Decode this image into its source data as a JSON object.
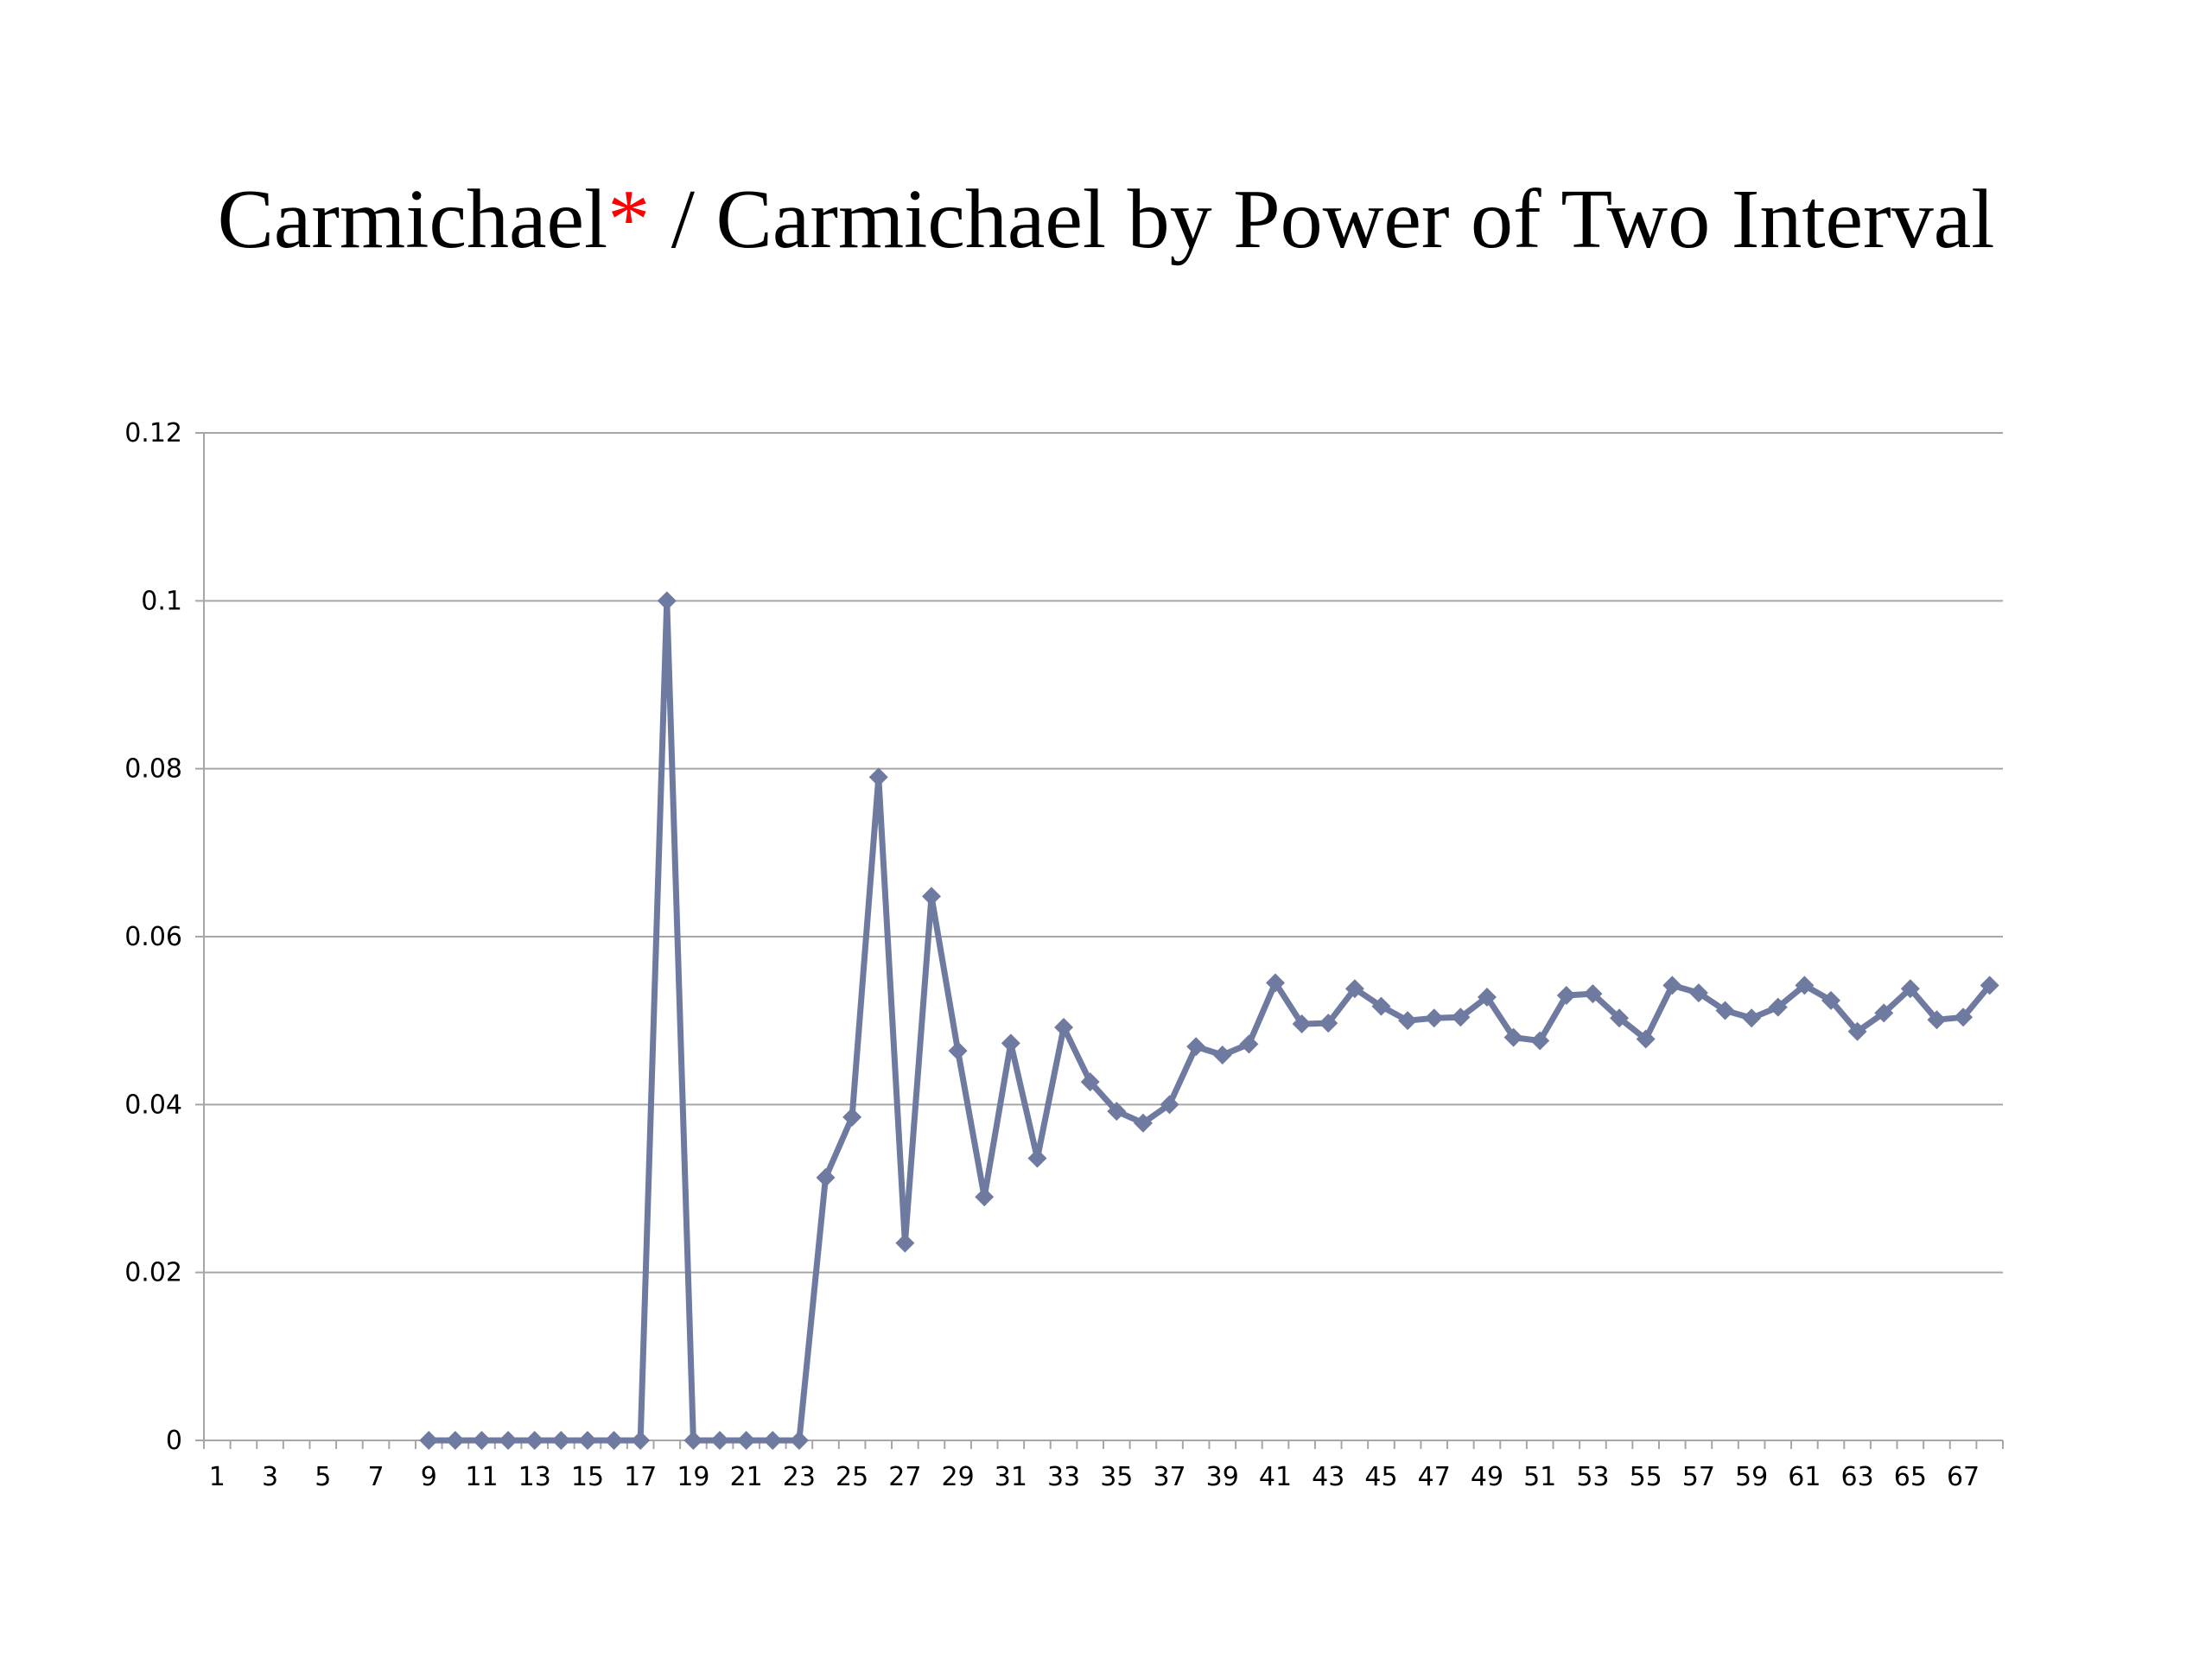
{
  "chart_data": {
    "type": "line",
    "title": {
      "prefix": "Carmichael",
      "mark": "*",
      "suffix": " / Carmichael by Power of Two Interval"
    },
    "xlabel": "",
    "ylabel": "",
    "x": [
      1,
      2,
      3,
      4,
      5,
      6,
      7,
      8,
      9,
      10,
      11,
      12,
      13,
      14,
      15,
      16,
      17,
      18,
      19,
      20,
      21,
      22,
      23,
      24,
      25,
      26,
      27,
      28,
      29,
      30,
      31,
      32,
      33,
      34,
      35,
      36,
      37,
      38,
      39,
      40,
      41,
      42,
      43,
      44,
      45,
      46,
      47,
      48,
      49,
      50,
      51,
      52,
      53,
      54,
      55,
      56,
      57,
      58,
      59,
      60,
      61,
      62,
      63,
      64,
      65,
      66,
      67,
      68
    ],
    "x_tick_labels": [
      "1",
      "3",
      "5",
      "7",
      "9",
      "11",
      "13",
      "15",
      "17",
      "19",
      "21",
      "23",
      "25",
      "27",
      "29",
      "31",
      "33",
      "35",
      "37",
      "39",
      "41",
      "43",
      "45",
      "47",
      "49",
      "51",
      "53",
      "55",
      "57",
      "59",
      "61",
      "63",
      "65",
      "67"
    ],
    "ylim": [
      0,
      0.12
    ],
    "y_ticks": [
      0,
      0.02,
      0.04,
      0.06,
      0.08,
      0.1,
      0.12
    ],
    "y_tick_labels": [
      "0",
      "0.02",
      "0.04",
      "0.06",
      "0.08",
      "0.1",
      "0.12"
    ],
    "grid": true,
    "legend": "none",
    "series": [
      {
        "color": "#6f7aa0",
        "marker": "diamond",
        "points": [
          [
            9,
            0
          ],
          [
            10,
            0
          ],
          [
            11,
            0
          ],
          [
            12,
            0
          ],
          [
            13,
            0
          ],
          [
            14,
            0
          ],
          [
            15,
            0
          ],
          [
            16,
            0
          ],
          [
            17,
            0
          ],
          [
            18,
            0.1
          ],
          [
            19,
            0
          ],
          [
            20,
            0
          ],
          [
            21,
            0
          ],
          [
            22,
            0
          ],
          [
            23,
            0
          ],
          [
            24,
            0.0313
          ],
          [
            25,
            0.0385
          ],
          [
            26,
            0.079
          ],
          [
            27,
            0.0235
          ],
          [
            28,
            0.0648
          ],
          [
            29,
            0.0464
          ],
          [
            30,
            0.029
          ],
          [
            31,
            0.0473
          ],
          [
            32,
            0.0336
          ],
          [
            33,
            0.0492
          ],
          [
            34,
            0.0427
          ],
          [
            35,
            0.0392
          ],
          [
            36,
            0.0378
          ],
          [
            37,
            0.04
          ],
          [
            38,
            0.0469
          ],
          [
            39,
            0.0459
          ],
          [
            40,
            0.0472
          ],
          [
            41,
            0.0545
          ],
          [
            42,
            0.0496
          ],
          [
            43,
            0.0497
          ],
          [
            44,
            0.0538
          ],
          [
            45,
            0.0517
          ],
          [
            46,
            0.05
          ],
          [
            47,
            0.0503
          ],
          [
            48,
            0.0504
          ],
          [
            49,
            0.0528
          ],
          [
            50,
            0.048
          ],
          [
            51,
            0.0476
          ],
          [
            52,
            0.053
          ],
          [
            53,
            0.0532
          ],
          [
            54,
            0.0503
          ],
          [
            55,
            0.0478
          ],
          [
            56,
            0.0542
          ],
          [
            57,
            0.0533
          ],
          [
            58,
            0.0512
          ],
          [
            59,
            0.0503
          ],
          [
            60,
            0.0516
          ],
          [
            61,
            0.0542
          ],
          [
            62,
            0.0524
          ],
          [
            63,
            0.0487
          ],
          [
            64,
            0.0509
          ],
          [
            65,
            0.0538
          ],
          [
            66,
            0.0501
          ],
          [
            67,
            0.0504
          ],
          [
            68,
            0.0542
          ]
        ]
      }
    ]
  }
}
